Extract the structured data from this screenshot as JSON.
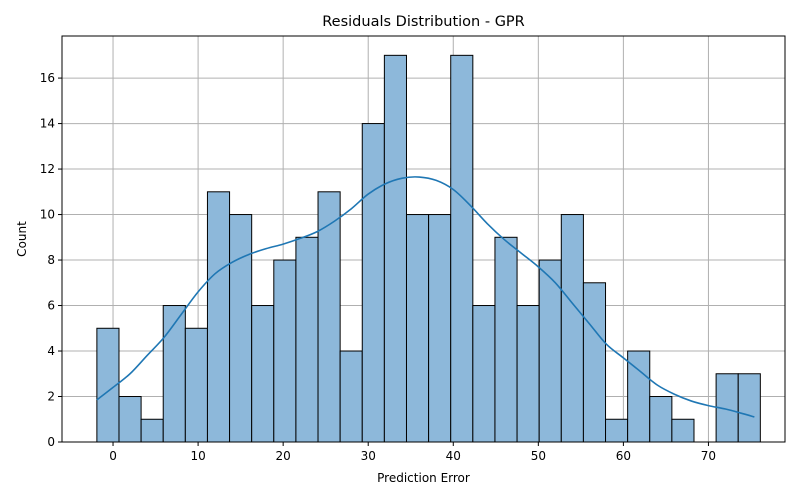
{
  "chart_data": {
    "type": "histogram",
    "title": "Residuals Distribution - GPR",
    "xlabel": "Prediction Error",
    "ylabel": "Count",
    "xlim": [
      -6,
      79
    ],
    "ylim": [
      0,
      17.85
    ],
    "grid": true,
    "x_ticks": [
      0,
      10,
      20,
      30,
      40,
      50,
      60,
      70
    ],
    "y_ticks": [
      0,
      2,
      4,
      6,
      8,
      10,
      12,
      14,
      16
    ],
    "bins": {
      "start": -1.9,
      "width": 2.6,
      "counts": [
        5,
        2,
        1,
        6,
        5,
        11,
        10,
        6,
        8,
        9,
        11,
        4,
        14,
        17,
        10,
        10,
        17,
        6,
        9,
        6,
        8,
        10,
        7,
        1,
        4,
        2,
        1,
        0,
        3,
        3
      ]
    },
    "kde": {
      "x": [
        -1.9,
        0,
        2,
        4,
        6,
        8,
        10,
        12,
        14,
        16,
        18,
        20,
        22,
        24,
        26,
        28,
        30,
        32,
        34,
        36,
        38,
        40,
        42,
        44,
        46,
        48,
        50,
        52,
        54,
        56,
        58,
        60,
        62,
        64,
        66,
        68,
        70,
        72,
        74,
        75.4
      ],
      "y": [
        1.85,
        2.4,
        3.0,
        3.8,
        4.6,
        5.6,
        6.6,
        7.4,
        7.9,
        8.25,
        8.5,
        8.7,
        8.95,
        9.25,
        9.7,
        10.25,
        10.9,
        11.35,
        11.6,
        11.65,
        11.5,
        11.1,
        10.4,
        9.6,
        8.9,
        8.3,
        7.7,
        7.0,
        6.1,
        5.2,
        4.3,
        3.7,
        3.1,
        2.5,
        2.1,
        1.8,
        1.6,
        1.45,
        1.25,
        1.1
      ]
    },
    "colors": {
      "bar_fill": "#8db8da",
      "bar_edge": "#000000",
      "kde_line": "#1f77b4",
      "grid": "#b0b0b0"
    }
  }
}
